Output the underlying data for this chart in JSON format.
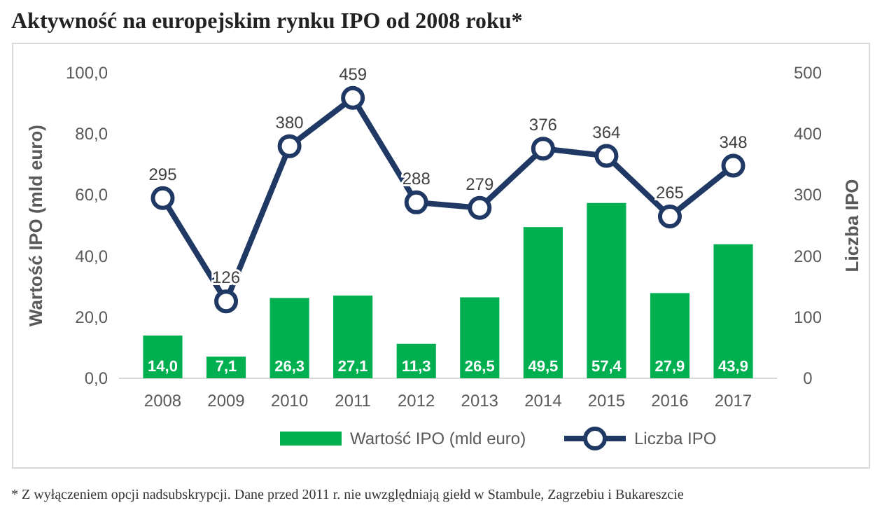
{
  "chart_data": {
    "type": "bar",
    "title": "Aktywność na europejskim rynku IPO od 2008 roku*",
    "categories": [
      "2008",
      "2009",
      "2010",
      "2011",
      "2012",
      "2013",
      "2014",
      "2015",
      "2016",
      "2017"
    ],
    "series": [
      {
        "name": "Wartość IPO (mld euro)",
        "color": "#00b050",
        "values": [
          14.0,
          7.1,
          26.3,
          27.1,
          11.3,
          26.5,
          49.5,
          57.4,
          27.9,
          43.9
        ],
        "value_labels": [
          "14,0",
          "7,1",
          "26,3",
          "27,1",
          "11,3",
          "26,5",
          "49,5",
          "57,4",
          "27,9",
          "43,9"
        ]
      },
      {
        "name": "Liczba IPO",
        "type": "line",
        "axis": "y2",
        "color": "#1f3864",
        "marker": "circle",
        "values": [
          295,
          126,
          380,
          459,
          288,
          279,
          376,
          364,
          265,
          348
        ],
        "value_labels": [
          "295",
          "126",
          "380",
          "459",
          "288",
          "279",
          "376",
          "364",
          "265",
          "348"
        ]
      }
    ],
    "ylabel": "Wartość IPO (mld euro)",
    "y2label": "Liczba IPO",
    "ylim": [
      0,
      100
    ],
    "yticks": [
      {
        "value": 0,
        "label": "0,0"
      },
      {
        "value": 20,
        "label": "20,0"
      },
      {
        "value": 40,
        "label": "40,0"
      },
      {
        "value": 60,
        "label": "60,0"
      },
      {
        "value": 80,
        "label": "80,0"
      },
      {
        "value": 100,
        "label": "100,0"
      }
    ],
    "y2lim": [
      0,
      500
    ],
    "y2ticks": [
      0,
      100,
      200,
      300,
      400,
      500
    ],
    "legend": "bottom",
    "annotations": [
      "* Z wyłączeniem opcji nadsubskrypcji. Dane przed 2011 r. nie uwzględniają giełd w Stambule, Zagrzebiu i Bukareszcie"
    ]
  }
}
